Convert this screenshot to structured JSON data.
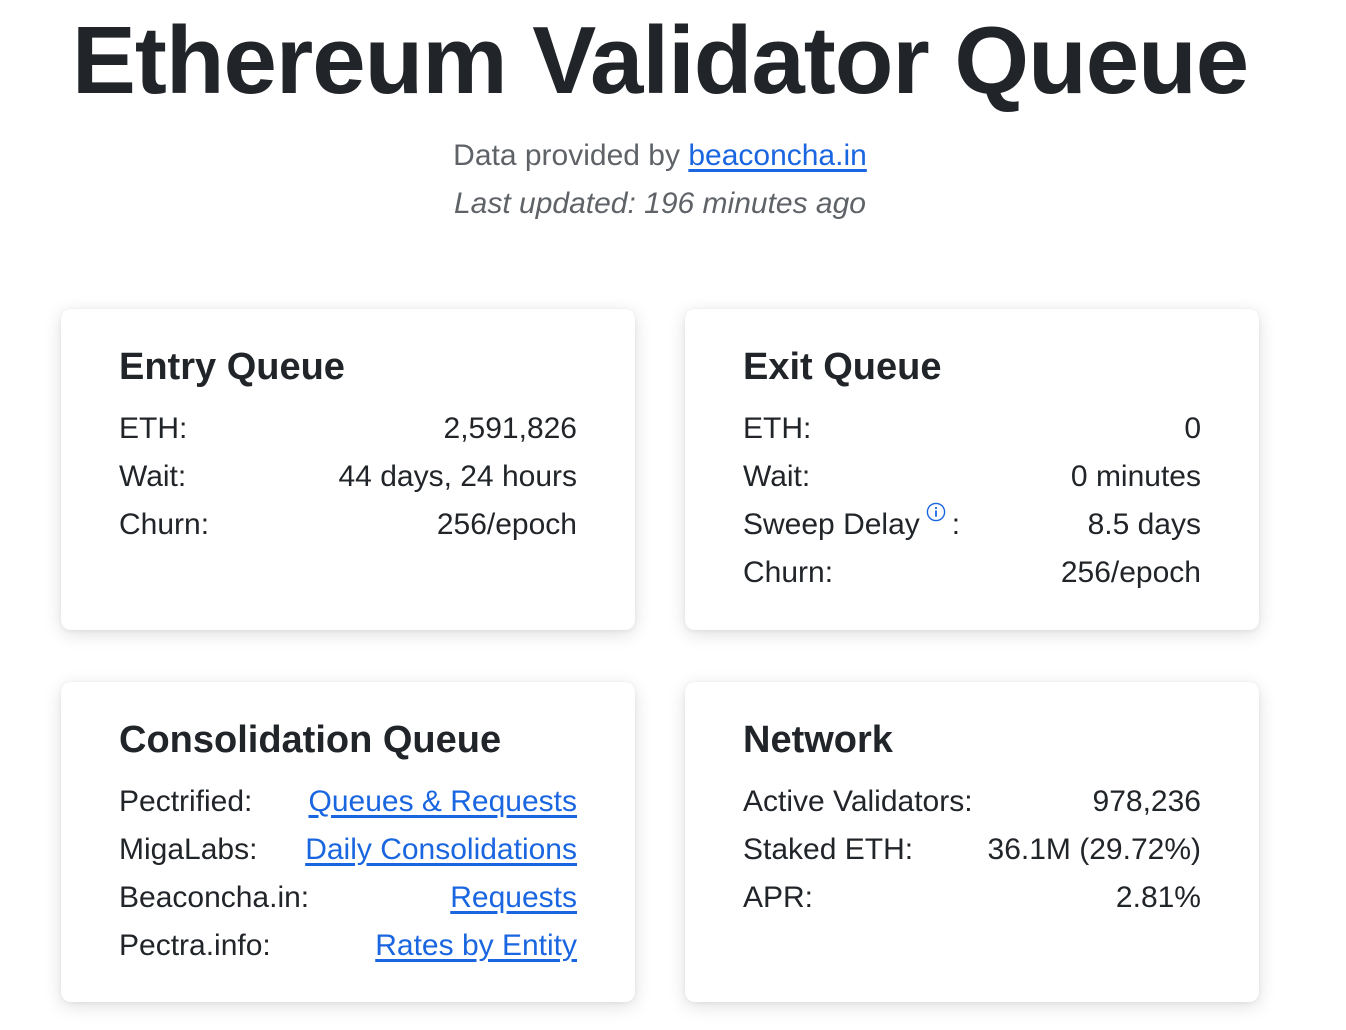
{
  "header": {
    "title": "Ethereum Validator Queue",
    "provided_prefix": "Data provided by",
    "provided_link": "beaconcha.in",
    "last_updated": "Last updated: 196 minutes ago"
  },
  "entry_queue": {
    "title": "Entry Queue",
    "eth_label": "ETH:",
    "eth_value": "2,591,826",
    "wait_label": "Wait:",
    "wait_value": "44 days, 24 hours",
    "churn_label": "Churn:",
    "churn_value": "256/epoch"
  },
  "exit_queue": {
    "title": "Exit Queue",
    "eth_label": "ETH:",
    "eth_value": "0",
    "wait_label": "Wait:",
    "wait_value": "0 minutes",
    "sweep_label": "Sweep Delay",
    "sweep_colon": ":",
    "sweep_value": "8.5 days",
    "churn_label": "Churn:",
    "churn_value": "256/epoch"
  },
  "consolidation_queue": {
    "title": "Consolidation Queue",
    "pectrified_label": "Pectrified:",
    "pectrified_link": "Queues & Requests",
    "migalabs_label": "MigaLabs:",
    "migalabs_link": "Daily Consolidations",
    "beaconchain_label": "Beaconcha.in:",
    "beaconchain_link": "Requests",
    "pectra_label": "Pectra.info:",
    "pectra_link": "Rates by Entity"
  },
  "network": {
    "title": "Network",
    "validators_label": "Active Validators:",
    "validators_value": "978,236",
    "staked_label": "Staked ETH:",
    "staked_value": "36.1M (29.72%)",
    "apr_label": "APR:",
    "apr_value": "2.81%"
  },
  "colors": {
    "text": "#212529",
    "muted": "#5f6368",
    "link": "#1a66e0"
  },
  "icons": {
    "sweep_info": "info-circle-icon"
  }
}
